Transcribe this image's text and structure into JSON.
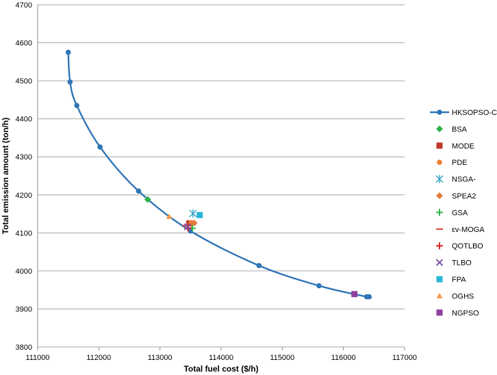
{
  "chart_data": {
    "type": "scatter",
    "title": "",
    "xlabel": "Total fuel cost ($/h)",
    "ylabel": "Total emission amount (ton/h)",
    "xlim": [
      111000,
      117000
    ],
    "ylim": [
      3800,
      4700
    ],
    "xticks": [
      111000,
      112000,
      113000,
      114000,
      115000,
      116000,
      117000
    ],
    "yticks": [
      3800,
      3900,
      4000,
      4100,
      4200,
      4300,
      4400,
      4500,
      4600,
      4700
    ],
    "grid": "horizontal",
    "legend_position": "right",
    "series": [
      {
        "name": "HKSOPSO-CP",
        "marker": "circle",
        "color": "#2e75b6",
        "line": true,
        "points": [
          [
            111500,
            4575
          ],
          [
            111530,
            4497
          ],
          [
            111640,
            4435
          ],
          [
            112020,
            4326
          ],
          [
            112650,
            4210
          ],
          [
            113500,
            4105
          ],
          [
            114620,
            4014
          ],
          [
            115600,
            3961
          ],
          [
            116380,
            3932
          ],
          [
            116420,
            3932
          ]
        ]
      },
      {
        "name": "BSA",
        "marker": "diamond",
        "color": "#2eb34a",
        "points": [
          [
            112800,
            4188
          ]
        ]
      },
      {
        "name": "MODE",
        "marker": "square",
        "color": "#c0392b",
        "points": [
          [
            113480,
            4125
          ]
        ]
      },
      {
        "name": "PDE",
        "marker": "circle",
        "color": "#ed7d31",
        "points": [
          [
            113510,
            4127
          ]
        ]
      },
      {
        "name": "NSGA-",
        "marker": "asterisk",
        "color": "#2ba3c4",
        "points": [
          [
            113540,
            4151
          ]
        ]
      },
      {
        "name": "SPEA2",
        "marker": "diamond",
        "color": "#e07b39",
        "points": [
          [
            113560,
            4126
          ]
        ]
      },
      {
        "name": "GSA",
        "marker": "plus",
        "color": "#2eb34a",
        "points": [
          [
            113530,
            4112
          ]
        ]
      },
      {
        "name": "εv-MOGA",
        "marker": "dash",
        "color": "#e53935",
        "points": [
          [
            113420,
            4119
          ]
        ]
      },
      {
        "name": "QOTLBO",
        "marker": "plus",
        "color": "#e02020",
        "points": [
          [
            113460,
            4113
          ]
        ]
      },
      {
        "name": "TLBO",
        "marker": "x",
        "color": "#7b52a6",
        "points": [
          [
            113450,
            4116
          ]
        ]
      },
      {
        "name": "FPA",
        "marker": "square",
        "color": "#29b6d6",
        "points": [
          [
            113650,
            4147
          ]
        ]
      },
      {
        "name": "OGHS",
        "marker": "triangle",
        "color": "#f39c4a",
        "points": [
          [
            113150,
            4143
          ]
        ]
      },
      {
        "name": "NGPSO",
        "marker": "square",
        "color": "#8e3fa0",
        "points": [
          [
            116180,
            3939
          ]
        ]
      }
    ]
  }
}
